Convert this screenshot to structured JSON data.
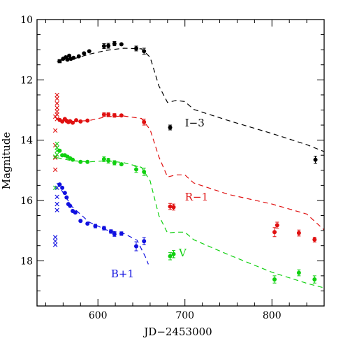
{
  "chart_data": {
    "type": "scatter",
    "title": "",
    "xlabel": "JD−2453000",
    "ylabel": "Magnitude",
    "xlim": [
      530,
      860
    ],
    "ylim": [
      10,
      19.5
    ],
    "y_inverted": true,
    "x_ticks": [
      600,
      700,
      800
    ],
    "y_ticks": [
      10,
      12,
      14,
      16,
      18
    ],
    "series": [
      {
        "name": "I−3",
        "color": "#000000",
        "filled": [
          {
            "x": 556,
            "y": 11.38,
            "err": 0.03,
            "shape": "square"
          },
          {
            "x": 560,
            "y": 11.3,
            "err": 0.03
          },
          {
            "x": 563,
            "y": 11.25,
            "err": 0.03
          },
          {
            "x": 565,
            "y": 11.33,
            "err": 0.03
          },
          {
            "x": 567,
            "y": 11.2,
            "err": 0.03
          },
          {
            "x": 569,
            "y": 11.3,
            "err": 0.03
          },
          {
            "x": 572,
            "y": 11.27,
            "err": 0.03
          },
          {
            "x": 578,
            "y": 11.22,
            "err": 0.03
          },
          {
            "x": 584,
            "y": 11.12,
            "err": 0.03
          },
          {
            "x": 590,
            "y": 11.05,
            "err": 0.03
          },
          {
            "x": 607,
            "y": 10.88,
            "err": 0.08
          },
          {
            "x": 612,
            "y": 10.87,
            "err": 0.08
          },
          {
            "x": 619,
            "y": 10.8,
            "err": 0.07
          },
          {
            "x": 627,
            "y": 10.82,
            "err": 0.05
          },
          {
            "x": 644,
            "y": 10.96,
            "err": 0.08
          },
          {
            "x": 653,
            "y": 11.05,
            "err": 0.1
          },
          {
            "x": 683,
            "y": 13.58,
            "err": 0.08
          },
          {
            "x": 850,
            "y": 14.65,
            "err": 0.12
          }
        ],
        "crosses": [],
        "model": [
          [
            553,
            11.38
          ],
          [
            570,
            11.32
          ],
          [
            590,
            11.15
          ],
          [
            610,
            11.02
          ],
          [
            630,
            10.95
          ],
          [
            650,
            10.97
          ],
          [
            660,
            11.25
          ],
          [
            670,
            12.2
          ],
          [
            680,
            12.75
          ],
          [
            690,
            12.68
          ],
          [
            700,
            12.72
          ],
          [
            710,
            12.98
          ],
          [
            750,
            13.35
          ],
          [
            800,
            13.78
          ],
          [
            840,
            14.15
          ],
          [
            860,
            14.38
          ]
        ]
      },
      {
        "name": "R−1",
        "color": "#e01010",
        "filled": [
          {
            "x": 556,
            "y": 13.33,
            "err": 0.04
          },
          {
            "x": 559,
            "y": 13.38,
            "err": 0.04
          },
          {
            "x": 562,
            "y": 13.3,
            "err": 0.04
          },
          {
            "x": 564,
            "y": 13.36,
            "err": 0.04
          },
          {
            "x": 566,
            "y": 13.4,
            "err": 0.04
          },
          {
            "x": 568,
            "y": 13.37,
            "err": 0.04
          },
          {
            "x": 571,
            "y": 13.42,
            "err": 0.04
          },
          {
            "x": 575,
            "y": 13.34,
            "err": 0.04
          },
          {
            "x": 580,
            "y": 13.38,
            "err": 0.04
          },
          {
            "x": 588,
            "y": 13.35,
            "err": 0.04
          },
          {
            "x": 607,
            "y": 13.15,
            "err": 0.06
          },
          {
            "x": 612,
            "y": 13.15,
            "err": 0.06
          },
          {
            "x": 619,
            "y": 13.18,
            "err": 0.06
          },
          {
            "x": 627,
            "y": 13.18,
            "err": 0.05
          },
          {
            "x": 653,
            "y": 13.4,
            "err": 0.1
          },
          {
            "x": 683,
            "y": 16.2,
            "err": 0.1
          },
          {
            "x": 687,
            "y": 16.22,
            "err": 0.1
          },
          {
            "x": 803,
            "y": 17.05,
            "err": 0.15
          },
          {
            "x": 806,
            "y": 16.82,
            "err": 0.1
          },
          {
            "x": 831,
            "y": 17.08,
            "err": 0.1
          },
          {
            "x": 849,
            "y": 17.3,
            "err": 0.08
          }
        ],
        "crosses": [
          {
            "x": 553,
            "y": 12.5
          },
          {
            "x": 553,
            "y": 12.62
          },
          {
            "x": 553,
            "y": 12.78
          },
          {
            "x": 553,
            "y": 12.93
          },
          {
            "x": 553,
            "y": 13.05
          },
          {
            "x": 553,
            "y": 13.15
          },
          {
            "x": 551,
            "y": 13.22
          },
          {
            "x": 553,
            "y": 13.3
          },
          {
            "x": 551,
            "y": 13.68
          },
          {
            "x": 551,
            "y": 14.17
          },
          {
            "x": 551,
            "y": 14.58
          },
          {
            "x": 551,
            "y": 14.98
          }
        ],
        "model": [
          [
            553,
            13.32
          ],
          [
            570,
            13.38
          ],
          [
            590,
            13.35
          ],
          [
            610,
            13.22
          ],
          [
            630,
            13.2
          ],
          [
            650,
            13.28
          ],
          [
            660,
            13.65
          ],
          [
            670,
            14.55
          ],
          [
            680,
            15.22
          ],
          [
            690,
            15.15
          ],
          [
            700,
            15.15
          ],
          [
            710,
            15.42
          ],
          [
            750,
            15.8
          ],
          [
            800,
            16.12
          ],
          [
            840,
            16.45
          ],
          [
            860,
            16.98
          ]
        ]
      },
      {
        "name": "V",
        "color": "#10d010",
        "filled": [
          {
            "x": 556,
            "y": 14.35,
            "err": 0.05
          },
          {
            "x": 559,
            "y": 14.5,
            "err": 0.05
          },
          {
            "x": 562,
            "y": 14.5,
            "err": 0.05
          },
          {
            "x": 565,
            "y": 14.55,
            "err": 0.05
          },
          {
            "x": 568,
            "y": 14.6,
            "err": 0.05
          },
          {
            "x": 571,
            "y": 14.65,
            "err": 0.05
          },
          {
            "x": 580,
            "y": 14.72,
            "err": 0.05
          },
          {
            "x": 588,
            "y": 14.72,
            "err": 0.05
          },
          {
            "x": 607,
            "y": 14.63,
            "err": 0.08
          },
          {
            "x": 612,
            "y": 14.68,
            "err": 0.08
          },
          {
            "x": 619,
            "y": 14.75,
            "err": 0.07
          },
          {
            "x": 627,
            "y": 14.8,
            "err": 0.05
          },
          {
            "x": 644,
            "y": 14.97,
            "err": 0.1
          },
          {
            "x": 653,
            "y": 15.05,
            "err": 0.12
          },
          {
            "x": 683,
            "y": 17.85,
            "err": 0.12
          },
          {
            "x": 687,
            "y": 17.78,
            "err": 0.12
          },
          {
            "x": 803,
            "y": 18.62,
            "err": 0.12
          },
          {
            "x": 831,
            "y": 18.4,
            "err": 0.1
          },
          {
            "x": 849,
            "y": 18.62,
            "err": 0.12
          }
        ],
        "crosses": [
          {
            "x": 553,
            "y": 14.12
          },
          {
            "x": 553,
            "y": 14.25
          },
          {
            "x": 553,
            "y": 14.35
          },
          {
            "x": 553,
            "y": 14.48
          },
          {
            "x": 551,
            "y": 14.55
          },
          {
            "x": 551,
            "y": 15.58
          }
        ],
        "model": [
          [
            553,
            14.58
          ],
          [
            570,
            14.68
          ],
          [
            590,
            14.72
          ],
          [
            610,
            14.68
          ],
          [
            630,
            14.75
          ],
          [
            650,
            14.9
          ],
          [
            660,
            15.35
          ],
          [
            670,
            16.5
          ],
          [
            680,
            17.08
          ],
          [
            690,
            17.05
          ],
          [
            700,
            17.05
          ],
          [
            710,
            17.3
          ],
          [
            750,
            17.8
          ],
          [
            800,
            18.38
          ],
          [
            840,
            18.75
          ],
          [
            860,
            18.9
          ]
        ]
      },
      {
        "name": "B+1",
        "color": "#1010e0",
        "filled": [
          {
            "x": 556,
            "y": 15.47,
            "err": 0.04
          },
          {
            "x": 559,
            "y": 15.58,
            "err": 0.04
          },
          {
            "x": 562,
            "y": 15.75,
            "err": 0.04
          },
          {
            "x": 564,
            "y": 15.9,
            "err": 0.04
          },
          {
            "x": 566,
            "y": 16.12,
            "err": 0.04
          },
          {
            "x": 568,
            "y": 16.18,
            "err": 0.04
          },
          {
            "x": 571,
            "y": 16.35,
            "err": 0.04
          },
          {
            "x": 574,
            "y": 16.4,
            "err": 0.04
          },
          {
            "x": 580,
            "y": 16.68,
            "err": 0.04
          },
          {
            "x": 588,
            "y": 16.77,
            "err": 0.05
          },
          {
            "x": 597,
            "y": 16.85,
            "err": 0.06
          },
          {
            "x": 607,
            "y": 16.92,
            "err": 0.06
          },
          {
            "x": 615,
            "y": 17.03,
            "err": 0.06
          },
          {
            "x": 619,
            "y": 17.12,
            "err": 0.07
          },
          {
            "x": 627,
            "y": 17.1,
            "err": 0.06
          },
          {
            "x": 644,
            "y": 17.52,
            "err": 0.15
          },
          {
            "x": 653,
            "y": 17.35,
            "err": 0.12
          }
        ],
        "crosses": [
          {
            "x": 553,
            "y": 15.58
          },
          {
            "x": 553,
            "y": 15.88
          },
          {
            "x": 553,
            "y": 16.12
          },
          {
            "x": 553,
            "y": 16.32
          },
          {
            "x": 551,
            "y": 17.22
          },
          {
            "x": 551,
            "y": 17.35
          },
          {
            "x": 551,
            "y": 17.47
          }
        ],
        "model": [
          [
            553,
            15.42
          ],
          [
            570,
            16.2
          ],
          [
            590,
            16.72
          ],
          [
            610,
            16.98
          ],
          [
            630,
            17.1
          ],
          [
            645,
            17.32
          ],
          [
            655,
            17.9
          ],
          [
            658,
            18.12
          ]
        ]
      }
    ],
    "labels": [
      {
        "text": "I−3",
        "series": 0,
        "x": 700,
        "y": 13.55
      },
      {
        "text": "R−1",
        "series": 1,
        "x": 700,
        "y": 16.0
      },
      {
        "text": "V",
        "series": 2,
        "x": 693,
        "y": 17.85
      },
      {
        "text": "B+1",
        "series": 3,
        "x": 615,
        "y": 18.55
      }
    ]
  }
}
